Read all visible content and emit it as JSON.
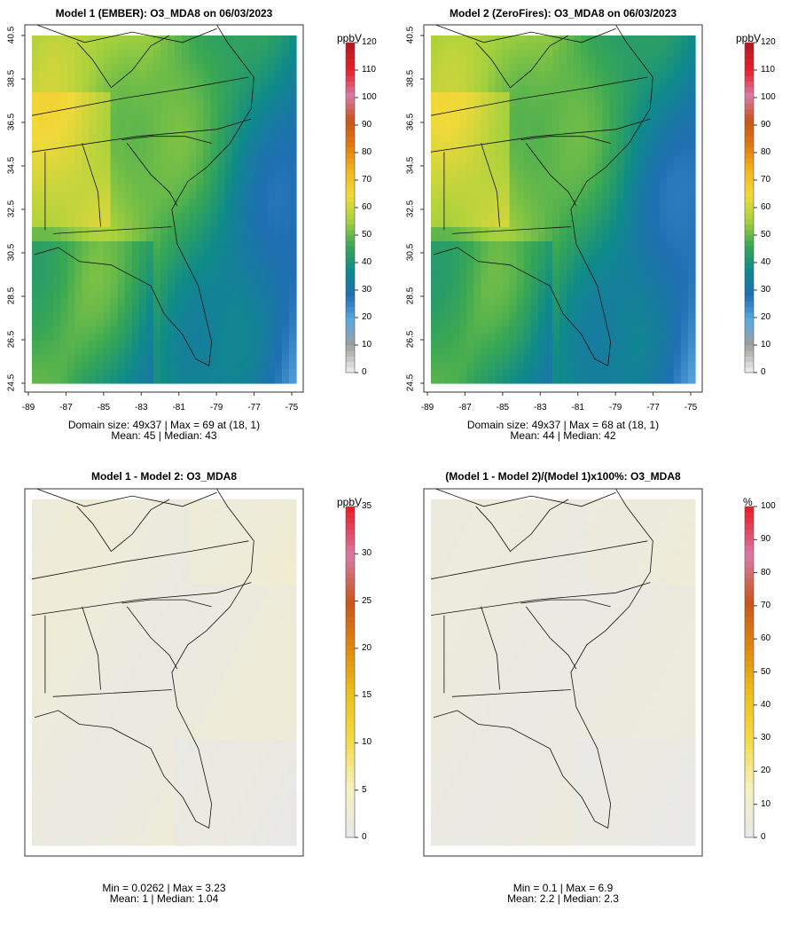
{
  "panels": [
    {
      "title": "Model 1 (EMBER): O3_MDA8 on 06/03/2023",
      "units": "ppbV",
      "stats_line1": "Domain size: 49x37 | Max = 69 at (18, 1)",
      "stats_line2": "Mean: 45 |  Median: 43",
      "scale": "concentration",
      "colorbar_ticks": [
        "0",
        "10",
        "20",
        "30",
        "40",
        "50",
        "60",
        "70",
        "80",
        "90",
        "100",
        "110",
        "120"
      ],
      "lat_ticks": [
        "24.5",
        "26.5",
        "28.5",
        "30.5",
        "32.5",
        "34.5",
        "36.5",
        "38.5",
        "40.5"
      ],
      "lon_ticks": [
        "-89",
        "-87",
        "-85",
        "-83",
        "-81",
        "-79",
        "-77",
        "-75"
      ]
    },
    {
      "title": "Model 2 (ZeroFires): O3_MDA8 on 06/03/2023",
      "units": "ppbV",
      "stats_line1": "Domain size: 49x37 | Max = 68 at (18, 1)",
      "stats_line2": "Mean: 44 |  Median: 42",
      "scale": "concentration",
      "colorbar_ticks": [
        "0",
        "10",
        "20",
        "30",
        "40",
        "50",
        "60",
        "70",
        "80",
        "90",
        "100",
        "110",
        "120"
      ],
      "lat_ticks": [
        "24.5",
        "26.5",
        "28.5",
        "30.5",
        "32.5",
        "34.5",
        "36.5",
        "38.5",
        "40.5"
      ],
      "lon_ticks": [
        "-89",
        "-87",
        "-85",
        "-83",
        "-81",
        "-79",
        "-77",
        "-75"
      ]
    },
    {
      "title": "Model 1 - Model 2: O3_MDA8",
      "units": "ppbV",
      "stats_line1": "Min = 0.0262 | Max = 3.23",
      "stats_line2": "Mean: 1 |  Median: 1.04",
      "scale": "difference",
      "colorbar_ticks": [
        "0",
        "5",
        "10",
        "15",
        "20",
        "25",
        "30",
        "35"
      ]
    },
    {
      "title": "(Model 1 - Model 2)/(Model 1)x100%: O3_MDA8",
      "units": "%",
      "stats_line1": "Min = 0.1 | Max = 6.9",
      "stats_line2": "Mean: 2.2 |  Median: 2.3",
      "scale": "percent",
      "colorbar_ticks": [
        "0",
        "10",
        "20",
        "30",
        "40",
        "50",
        "60",
        "70",
        "80",
        "90",
        "100"
      ]
    }
  ],
  "colors": {
    "concentration_ramp": [
      "#e8e8e8",
      "#9e9e9e",
      "#5aa9e0",
      "#1f6fb3",
      "#0e8a8a",
      "#3aa853",
      "#a6d13d",
      "#f1d93a",
      "#f0b41c",
      "#e07a12",
      "#c8551a",
      "#d87aa6",
      "#e8202a",
      "#b51a22"
    ],
    "difference_ramp": [
      "#e8e8e8",
      "#f6f0c0",
      "#f2dc4a",
      "#ecc11c",
      "#e08a10",
      "#c8551a",
      "#d87aa6",
      "#e8202a"
    ]
  }
}
